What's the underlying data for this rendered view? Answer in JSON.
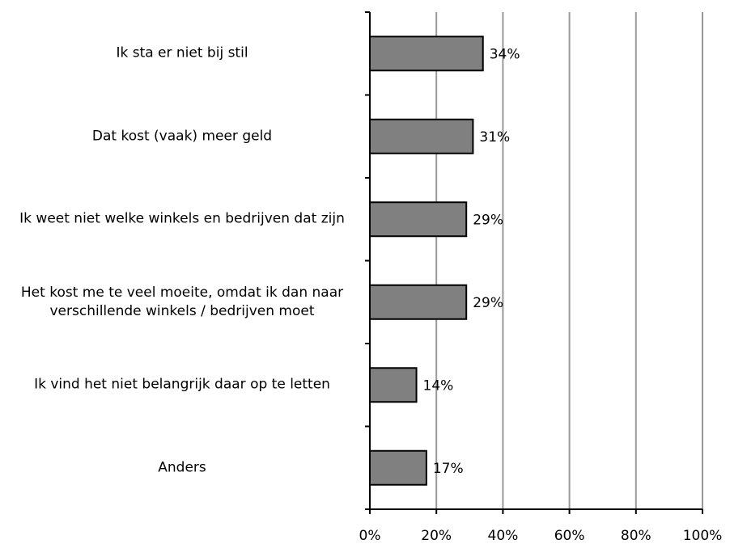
{
  "chart_data": {
    "type": "bar",
    "orientation": "horizontal",
    "categories": [
      "Ik sta er niet bij stil",
      "Dat kost (vaak) meer geld",
      "Ik weet niet welke winkels en bedrijven dat zijn",
      "Het kost me te veel moeite, omdat ik dan naar verschillende winkels / bedrijven moet",
      "Ik vind het niet belangrijk daar op te letten",
      "Anders"
    ],
    "values": [
      34,
      31,
      29,
      29,
      14,
      17
    ],
    "value_labels": [
      "34%",
      "31%",
      "29%",
      "29%",
      "14%",
      "17%"
    ],
    "color": "#808080",
    "xlim": [
      0,
      100
    ],
    "xticks": [
      {
        "value": 0,
        "label": "0%"
      },
      {
        "value": 20,
        "label": "20%"
      },
      {
        "value": 40,
        "label": "40%"
      },
      {
        "value": 60,
        "label": "60%"
      },
      {
        "value": 80,
        "label": "80%"
      },
      {
        "value": 100,
        "label": "100%"
      }
    ],
    "grid": true
  }
}
